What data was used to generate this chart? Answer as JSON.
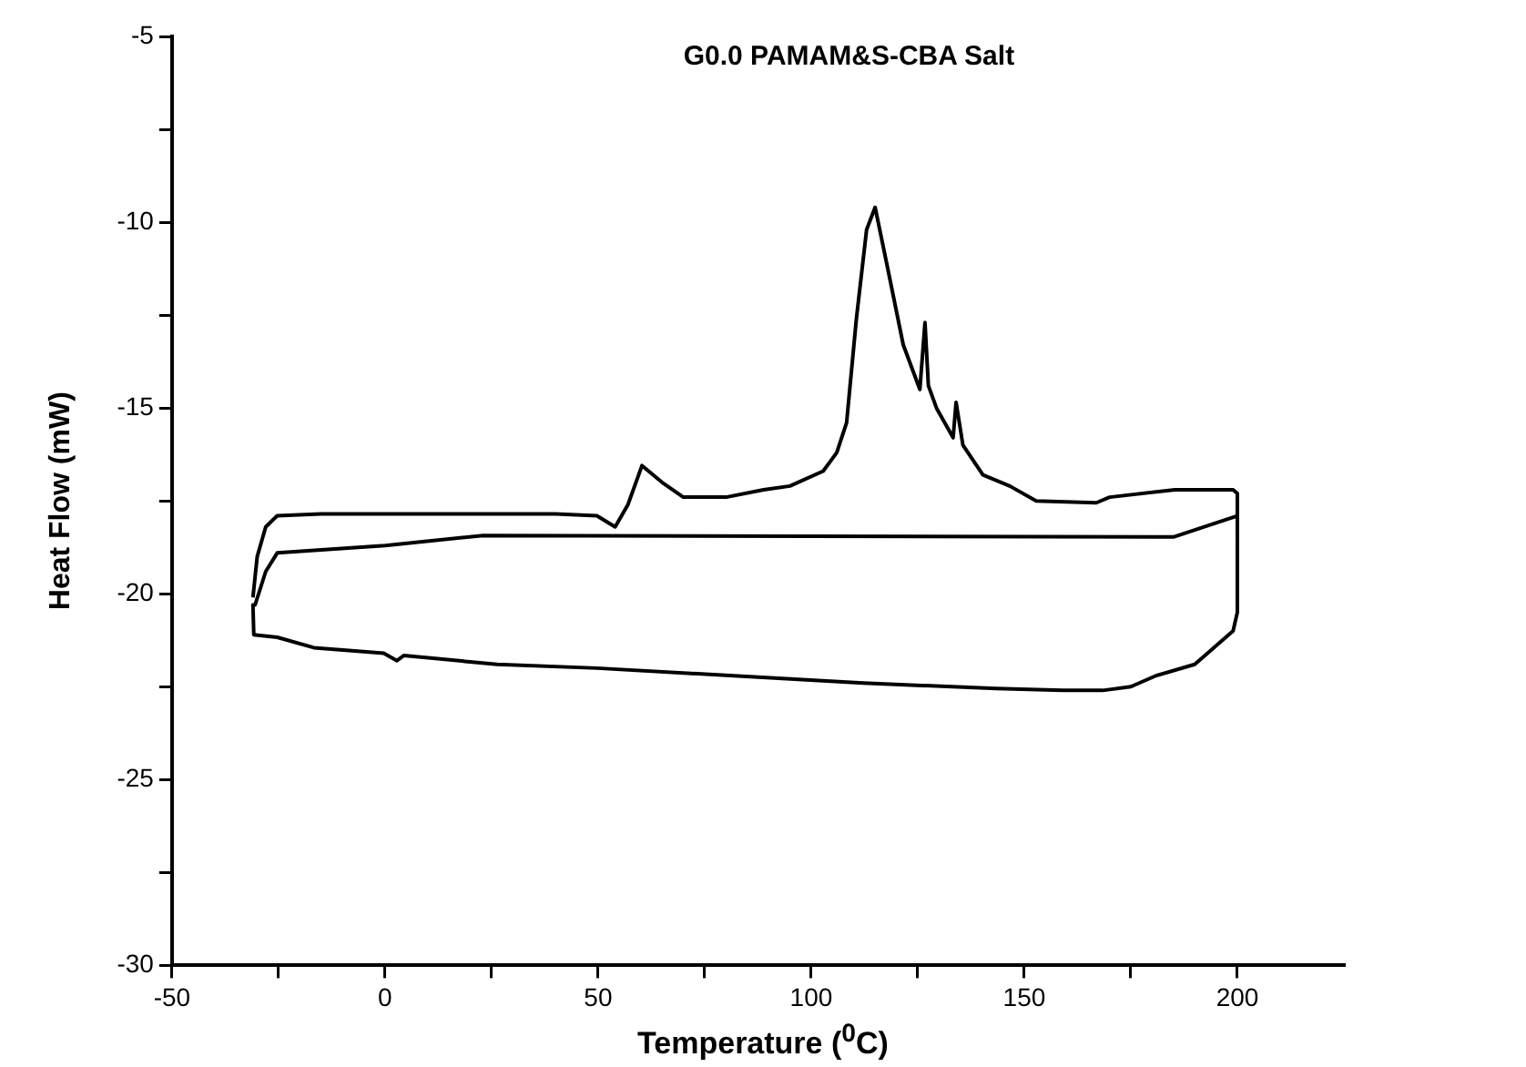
{
  "chart_data": {
    "type": "line",
    "title": "G0.0 PAMAM&S-CBA Salt",
    "xlabel": "Temperature ($^{0}$C)",
    "ylabel": "Heat Flow (mW)",
    "xlim": [
      -50,
      225
    ],
    "xticks": [
      -50,
      {
        "value": -25,
        "label": null
      },
      0,
      {
        "value": 25,
        "label": null
      },
      50,
      {
        "value": 75,
        "label": null
      },
      100,
      {
        "value": 125,
        "label": null
      },
      150,
      {
        "value": 175,
        "label": null
      },
      200
    ],
    "ylim": [
      -30,
      -5
    ],
    "yticks": [
      -30,
      {
        "value": -27.5,
        "label": null
      },
      -25,
      {
        "value": -22.5,
        "label": null
      },
      -20,
      {
        "value": -17.5,
        "label": null
      },
      -15,
      {
        "value": -12.5,
        "label": null
      },
      -10,
      {
        "value": -7.5,
        "label": null
      },
      -5
    ],
    "grid": false,
    "legend": false,
    "marker": "none",
    "line_style": "solid",
    "series": [
      {
        "color": "#000000",
        "x": [
          -31,
          -30,
          -28,
          -25.3,
          -15,
          0,
          20,
          40,
          49.7,
          54,
          57,
          60.3,
          65,
          70,
          80,
          88.8,
          95,
          102.8,
          106,
          108.3,
          110.6,
          113,
          115,
          117.7,
          121.6,
          125.5,
          126.7,
          127.5,
          129.4,
          133.3,
          134,
          135.6,
          140.3,
          146.6,
          152.8,
          166.9,
          170,
          185.3,
          199,
          200,
          200,
          199,
          196,
          190,
          181,
          175,
          168.4,
          159,
          143.4,
          112.2,
          80.9,
          49.7,
          26.3,
          4.4,
          2.8,
          -0.3,
          -16.7,
          -25.3,
          -30.8,
          -31,
          -30.5,
          -28,
          -25.3,
          0,
          23,
          100,
          185,
          200
        ],
        "values": [
          -20.1,
          -19,
          -18.2,
          -17.9,
          -17.85,
          -17.85,
          -17.85,
          -17.85,
          -17.9,
          -18.2,
          -17.6,
          -16.55,
          -17,
          -17.4,
          -17.4,
          -17.2,
          -17.1,
          -16.7,
          -16.2,
          -15.4,
          -12.6,
          -10.2,
          -9.6,
          -11.1,
          -13.3,
          -14.5,
          -12.7,
          -14.4,
          -15,
          -15.8,
          -14.85,
          -16,
          -16.8,
          -17.1,
          -17.5,
          -17.55,
          -17.4,
          -17.2,
          -17.2,
          -17.3,
          -20.5,
          -21,
          -21.3,
          -21.9,
          -22.2,
          -22.5,
          -22.6,
          -22.6,
          -22.55,
          -22.4,
          -22.2,
          -22,
          -21.9,
          -21.66,
          -21.8,
          -21.6,
          -21.45,
          -21.17,
          -21.1,
          -20.3,
          -20.3,
          -19.4,
          -18.9,
          -18.7,
          -18.43,
          -18.45,
          -18.47,
          -17.9
        ]
      }
    ]
  }
}
